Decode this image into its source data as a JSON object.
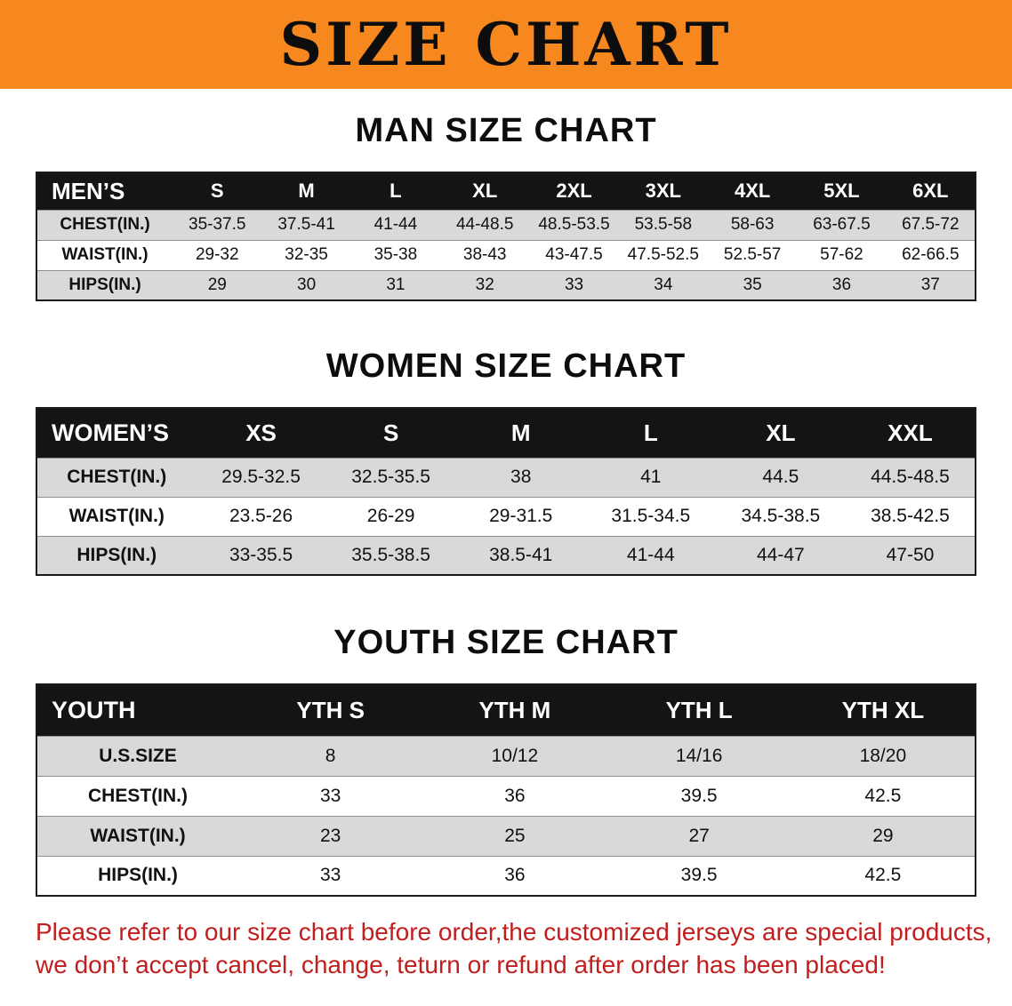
{
  "banner": {
    "title": "SIZE CHART",
    "bg_color": "#f6881f",
    "text_color": "#0d0d0d"
  },
  "sections": [
    {
      "heading": "MAN SIZE CHART",
      "table": {
        "header": [
          "MEN’S",
          "S",
          "M",
          "L",
          "XL",
          "2XL",
          "3XL",
          "4XL",
          "5XL",
          "6XL"
        ],
        "rows": [
          [
            "CHEST(IN.)",
            "35-37.5",
            "37.5-41",
            "41-44",
            "44-48.5",
            "48.5-53.5",
            "53.5-58",
            "58-63",
            "63-67.5",
            "67.5-72"
          ],
          [
            "WAIST(IN.)",
            "29-32",
            "32-35",
            "35-38",
            "38-43",
            "43-47.5",
            "47.5-52.5",
            "52.5-57",
            "57-62",
            "62-66.5"
          ],
          [
            "HIPS(IN.)",
            "29",
            "30",
            "31",
            "32",
            "33",
            "34",
            "35",
            "36",
            "37"
          ]
        ]
      }
    },
    {
      "heading": "WOMEN SIZE CHART",
      "table": {
        "header": [
          "WOMEN’S",
          "XS",
          "S",
          "M",
          "L",
          "XL",
          "XXL"
        ],
        "rows": [
          [
            "CHEST(IN.)",
            "29.5-32.5",
            "32.5-35.5",
            "38",
            "41",
            "44.5",
            "44.5-48.5"
          ],
          [
            "WAIST(IN.)",
            "23.5-26",
            "26-29",
            "29-31.5",
            "31.5-34.5",
            "34.5-38.5",
            "38.5-42.5"
          ],
          [
            "HIPS(IN.)",
            "33-35.5",
            "35.5-38.5",
            "38.5-41",
            "41-44",
            "44-47",
            "47-50"
          ]
        ]
      }
    },
    {
      "heading": "YOUTH SIZE CHART",
      "table": {
        "header": [
          "YOUTH",
          "YTH S",
          "YTH M",
          "YTH L",
          "YTH XL"
        ],
        "rows": [
          [
            "U.S.SIZE",
            "8",
            "10/12",
            "14/16",
            "18/20"
          ],
          [
            "CHEST(IN.)",
            "33",
            "36",
            "39.5",
            "42.5"
          ],
          [
            "WAIST(IN.)",
            "23",
            "25",
            "27",
            "29"
          ],
          [
            "HIPS(IN.)",
            "33",
            "36",
            "39.5",
            "42.5"
          ]
        ]
      }
    }
  ],
  "disclaimer": {
    "line1": "Please refer to our size chart before order,the customized jerseys are special products,",
    "line2": "we don’t accept cancel, change, teturn or refund after order has been placed!",
    "text_color": "#c21e1e"
  },
  "colors": {
    "banner_orange": "#f6881f",
    "table_header_black": "#141414",
    "row_stripe_gray": "#d9d9d9",
    "row_white": "#ffffff",
    "disclaimer_red": "#c21e1e"
  }
}
